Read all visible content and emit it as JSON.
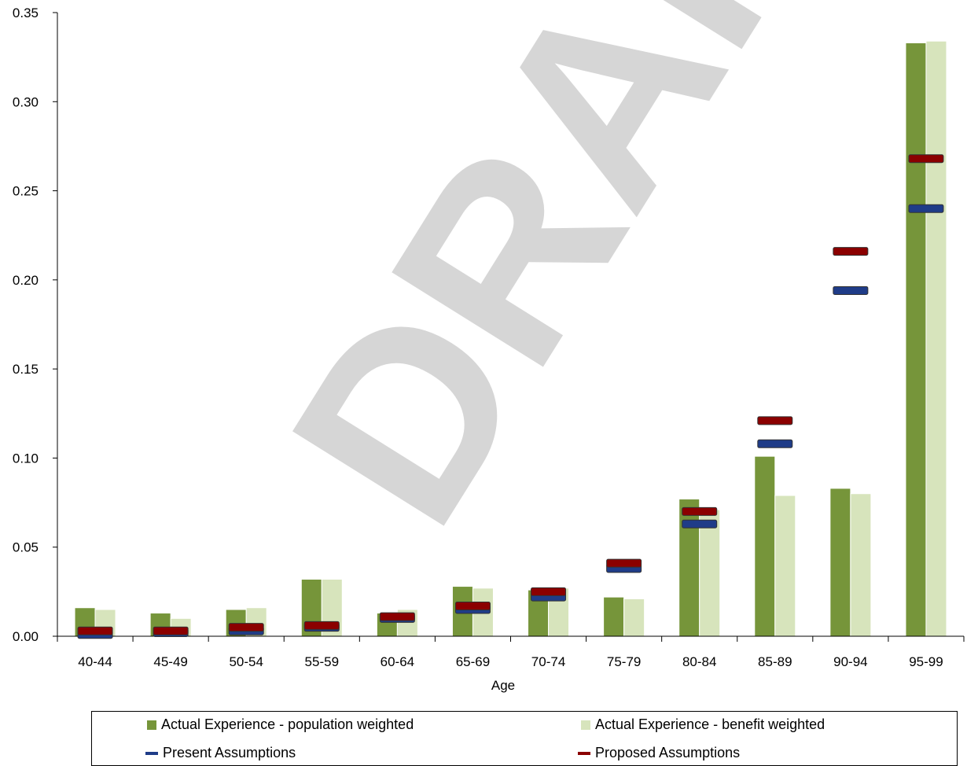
{
  "chart_data": {
    "type": "bar",
    "watermark": "DRAFT",
    "xlabel": "Age",
    "ylabel": "",
    "ylim": [
      0,
      0.35
    ],
    "yticks": [
      "0.00",
      "0.05",
      "0.10",
      "0.15",
      "0.20",
      "0.25",
      "0.30",
      "0.35"
    ],
    "categories": [
      "40-44",
      "45-49",
      "50-54",
      "55-59",
      "60-64",
      "65-69",
      "70-74",
      "75-79",
      "80-84",
      "85-89",
      "90-94",
      "95-99"
    ],
    "bar_series": [
      {
        "name": "Actual Experience - population weighted",
        "color": "#76953a",
        "values": [
          0.016,
          0.013,
          0.015,
          0.032,
          0.013,
          0.028,
          0.026,
          0.022,
          0.077,
          0.101,
          0.083,
          0.333
        ]
      },
      {
        "name": "Actual Experience - benefit weighted",
        "color": "#d7e4bc",
        "values": [
          0.015,
          0.01,
          0.016,
          0.032,
          0.015,
          0.027,
          0.027,
          0.021,
          0.071,
          0.079,
          0.08,
          0.334
        ]
      }
    ],
    "marker_series": [
      {
        "name": "Present Assumptions",
        "color": "#1f3c88",
        "values": [
          0.001,
          0.002,
          0.003,
          0.005,
          0.01,
          0.015,
          0.022,
          0.038,
          0.063,
          0.108,
          0.194,
          0.24
        ]
      },
      {
        "name": "Proposed Assumptions",
        "color": "#8b0000",
        "values": [
          0.003,
          0.003,
          0.005,
          0.006,
          0.011,
          0.017,
          0.025,
          0.041,
          0.07,
          0.121,
          0.216,
          0.268
        ]
      }
    ]
  },
  "legend": {
    "items": [
      "Actual Experience - population weighted",
      "Actual Experience - benefit weighted",
      "Present Assumptions",
      "Proposed Assumptions"
    ]
  }
}
